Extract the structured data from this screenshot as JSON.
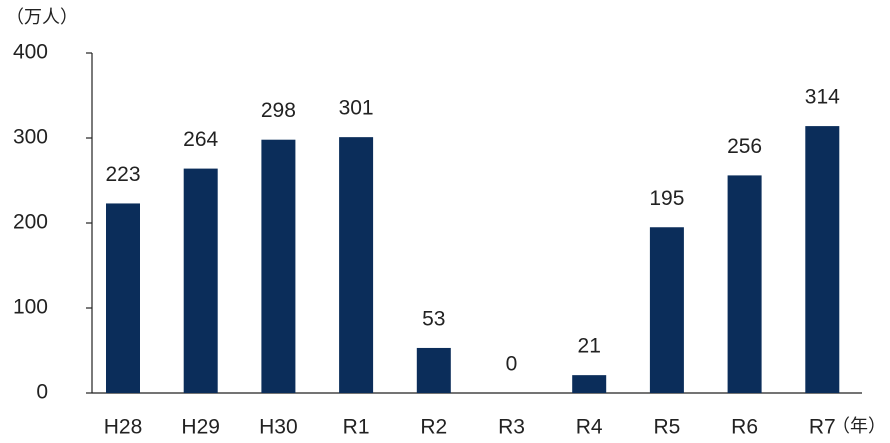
{
  "chart_data": {
    "type": "bar",
    "y_label": "（万人）",
    "x_label": "（年）",
    "categories": [
      "H28",
      "H29",
      "H30",
      "R1",
      "R2",
      "R3",
      "R4",
      "R5",
      "R6",
      "R7"
    ],
    "values": [
      223,
      264,
      298,
      301,
      53,
      0,
      21,
      195,
      256,
      314
    ],
    "color": "#0b2d5a",
    "ylim": [
      0,
      400
    ],
    "yticks": [
      0,
      100,
      200,
      300,
      400
    ],
    "grid": false
  }
}
